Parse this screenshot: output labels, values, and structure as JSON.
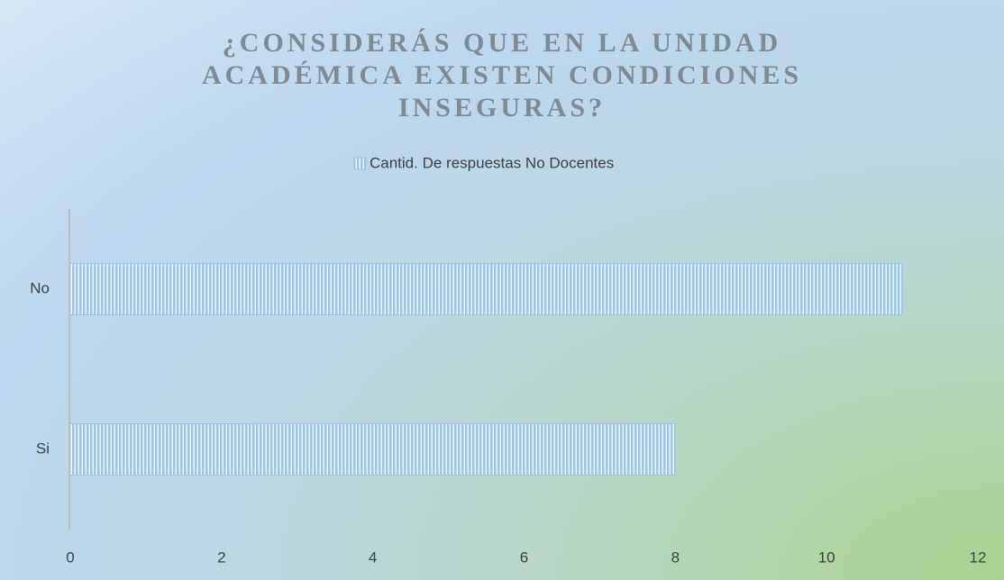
{
  "chart_data": {
    "type": "hbar",
    "title": "¿CONSIDERÁS QUE EN LA UNIDAD ACADÉMICA EXISTEN CONDICIONES INSEGURAS?",
    "categories": [
      "Si",
      "No"
    ],
    "series": [
      {
        "name": "Cantid. De respuestas No Docentes",
        "color": "#9dc3e6",
        "values": [
          8,
          11
        ]
      }
    ],
    "xlim": [
      0,
      12
    ],
    "xticks": [
      0,
      2,
      4,
      6,
      8,
      10,
      12
    ],
    "grid": false,
    "legend": "top"
  }
}
